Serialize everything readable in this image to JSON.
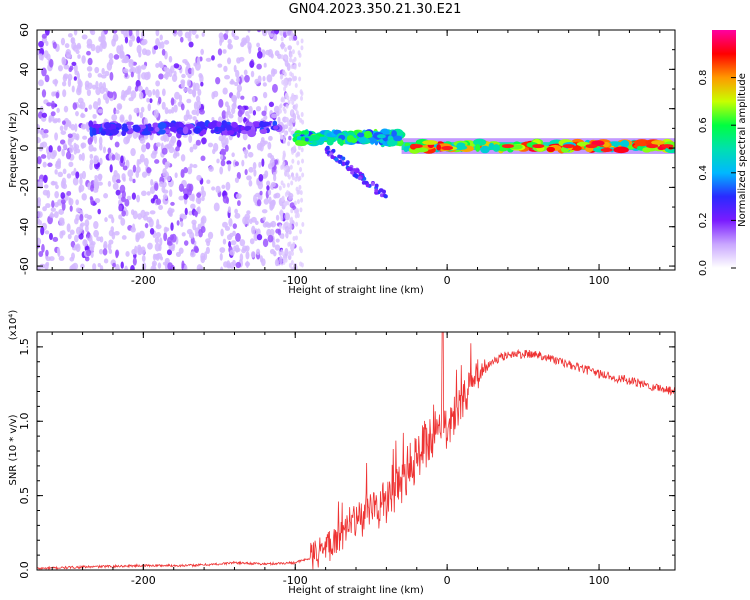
{
  "title": "GN04.2023.350.21.30.E21",
  "chart_data": [
    {
      "type": "heatmap",
      "panel": "spectrogram",
      "xlabel": "Height of straight line (km)",
      "ylabel": "Frequency (Hz)",
      "xlim": [
        -270,
        150
      ],
      "ylim": [
        -62,
        60
      ],
      "xticks": [
        -200,
        -100,
        0,
        100
      ],
      "yticks": [
        -60,
        -40,
        -20,
        0,
        20,
        40,
        60
      ],
      "colorbar": {
        "label": "Normalized spectral amplitude",
        "range": [
          0,
          1
        ],
        "ticks": [
          0.0,
          0.2,
          0.4,
          0.6,
          0.8
        ],
        "colormap": [
          "#ffffff",
          "#c9a6ff",
          "#7a1cff",
          "#2a2aff",
          "#00b8ff",
          "#00e0b0",
          "#00ff40",
          "#c8ff00",
          "#ff9900",
          "#ff0000",
          "#ff00a0"
        ]
      },
      "features": [
        {
          "name": "noise",
          "x_range": [
            -270,
            -100
          ],
          "freq_range": [
            -62,
            60
          ],
          "amplitude": 0.12
        },
        {
          "name": "signal_band_low",
          "x_range": [
            -235,
            -110
          ],
          "freq_center": 10,
          "freq_halfwidth": 2.5,
          "amplitude": 0.3
        },
        {
          "name": "signal_band_mid",
          "x_range": [
            -100,
            -30
          ],
          "freq_center": 5,
          "freq_halfwidth": 3,
          "amplitude": 0.6
        },
        {
          "name": "signal_band_high",
          "x_range": [
            -30,
            150
          ],
          "freq_center": 1,
          "freq_halfwidth": 2,
          "amplitude": 0.85
        },
        {
          "name": "dispersive_tail",
          "x_range": [
            -80,
            -40
          ],
          "freq_range": [
            -25,
            0
          ],
          "amplitude": 0.35
        }
      ]
    },
    {
      "type": "line",
      "panel": "snr",
      "xlabel": "Height of straight line (km)",
      "ylabel": "SNR (10 * v/v)",
      "multiplier": "(x10⁴)",
      "xlim": [
        -270,
        150
      ],
      "ylim": [
        0,
        1.6
      ],
      "xticks": [
        -200,
        -100,
        0,
        100
      ],
      "yticks": [
        0.0,
        0.5,
        1.0,
        1.5
      ],
      "line_color": "#ee3333",
      "series": [
        {
          "x": [
            -270,
            -240,
            -200,
            -170,
            -150,
            -140,
            -120,
            -100,
            -90,
            -80,
            -70,
            -60,
            -50,
            -40,
            -30,
            -20,
            -10,
            -5,
            0,
            10,
            20,
            30,
            40,
            60,
            80,
            100,
            120,
            150
          ],
          "y": [
            0.01,
            0.02,
            0.03,
            0.03,
            0.04,
            0.05,
            0.04,
            0.05,
            0.08,
            0.15,
            0.25,
            0.32,
            0.4,
            0.45,
            0.6,
            0.75,
            0.9,
            1.0,
            0.95,
            1.15,
            1.3,
            1.4,
            1.45,
            1.45,
            1.38,
            1.32,
            1.27,
            1.2
          ]
        }
      ]
    }
  ]
}
